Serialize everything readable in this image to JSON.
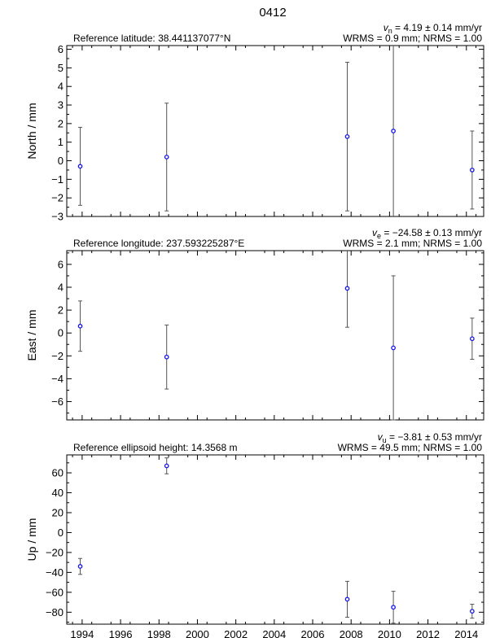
{
  "figure_title": "0412",
  "colors": {
    "point": "#1515e6",
    "errorbar": "#555555",
    "axes": "#000000"
  },
  "chart_data": [
    {
      "type": "scatter",
      "ylabel": "North / mm",
      "reference": "Reference latitude: 38.441137077°N",
      "velocity_symbol": "v",
      "velocity_sub": "n",
      "velocity_text": " = 4.19 ± 0.14 mm/yr",
      "stats": "WRMS = 0.9 mm; NRMS = 1.00",
      "ylim": [
        -3,
        6.2
      ],
      "yticks": [
        -3,
        -2,
        -1,
        0,
        1,
        2,
        3,
        4,
        5,
        6
      ],
      "xlim": [
        1993.2,
        2014.9
      ],
      "points": [
        {
          "x": 1993.9,
          "y": -0.3,
          "err": 2.1
        },
        {
          "x": 1998.4,
          "y": 0.2,
          "err": 2.9
        },
        {
          "x": 2007.8,
          "y": 1.3,
          "err": 4.0
        },
        {
          "x": 2010.2,
          "y": 1.6,
          "err": 4.7
        },
        {
          "x": 2014.3,
          "y": -0.5,
          "err": 2.1
        }
      ]
    },
    {
      "type": "scatter",
      "ylabel": "East / mm",
      "reference": "Reference longitude: 237.593225287°E",
      "velocity_symbol": "v",
      "velocity_sub": "e",
      "velocity_text": " = −24.58 ± 0.13 mm/yr",
      "stats": "WRMS = 2.1 mm; NRMS = 1.00",
      "ylim": [
        -7.6,
        7.2
      ],
      "yticks": [
        -6,
        -4,
        -2,
        0,
        2,
        4,
        6
      ],
      "xlim": [
        1993.2,
        2014.9
      ],
      "points": [
        {
          "x": 1993.9,
          "y": 0.6,
          "err": 2.2
        },
        {
          "x": 1998.4,
          "y": -2.1,
          "err": 2.8
        },
        {
          "x": 2007.8,
          "y": 3.9,
          "err": 3.4
        },
        {
          "x": 2010.2,
          "y": -1.3,
          "err": 6.3
        },
        {
          "x": 2014.3,
          "y": -0.5,
          "err": 1.8
        }
      ]
    },
    {
      "type": "scatter",
      "ylabel": "Up / mm",
      "reference": "Reference ellipsoid height: 14.3568 m",
      "velocity_symbol": "v",
      "velocity_sub": "u",
      "velocity_text": " = −3.81 ± 0.53 mm/yr",
      "stats": "WRMS = 49.5 mm; NRMS = 1.00",
      "ylim": [
        -92,
        78
      ],
      "yticks": [
        -80,
        -60,
        -40,
        -20,
        0,
        20,
        40,
        60
      ],
      "xlim": [
        1993.2,
        2014.9
      ],
      "xticks": [
        1994,
        1996,
        1998,
        2000,
        2002,
        2004,
        2006,
        2008,
        2010,
        2012,
        2014
      ],
      "points": [
        {
          "x": 1993.9,
          "y": -34,
          "err": 8
        },
        {
          "x": 1998.4,
          "y": 67,
          "err": 8
        },
        {
          "x": 2007.8,
          "y": -67,
          "err": 18
        },
        {
          "x": 2010.2,
          "y": -75,
          "err": 16
        },
        {
          "x": 2014.3,
          "y": -79,
          "err": 7
        }
      ]
    }
  ]
}
